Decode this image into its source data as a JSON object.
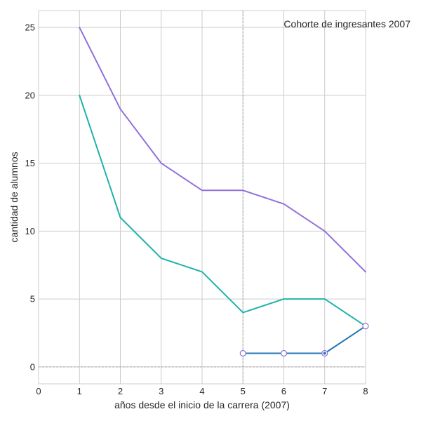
{
  "chart_data": {
    "type": "line",
    "annotation": "Cohorte de ingresantes 2007",
    "xlabel": "años desde el inicio de la carrera (2007)",
    "ylabel": "cantidad de alumnos",
    "xlim": [
      0,
      8
    ],
    "ylim": [
      -1.25,
      26.25
    ],
    "xticks": [
      0,
      1,
      2,
      3,
      4,
      5,
      6,
      7,
      8
    ],
    "yticks": [
      0,
      5,
      10,
      15,
      20,
      25
    ],
    "grid": true,
    "reference_lines": {
      "vertical_x": 5,
      "horizontal_y": 0
    },
    "series": [
      {
        "color": "#9370db",
        "x": [
          1,
          2,
          3,
          4,
          5,
          6,
          7,
          8
        ],
        "y": [
          25,
          19,
          15,
          13,
          13,
          12,
          10,
          7
        ],
        "markers": false
      },
      {
        "color": "#20b2aa",
        "x": [
          1,
          2,
          3,
          4,
          5,
          6,
          7,
          8
        ],
        "y": [
          20,
          11,
          8,
          7,
          4,
          5,
          5,
          3
        ],
        "markers": false
      },
      {
        "color": "#1f77b4",
        "x": [
          5,
          6,
          7,
          8
        ],
        "y": [
          1,
          1,
          1,
          3
        ],
        "markers": true,
        "marker_edge": "#9370db",
        "marker_face": "#ffffff"
      }
    ]
  }
}
